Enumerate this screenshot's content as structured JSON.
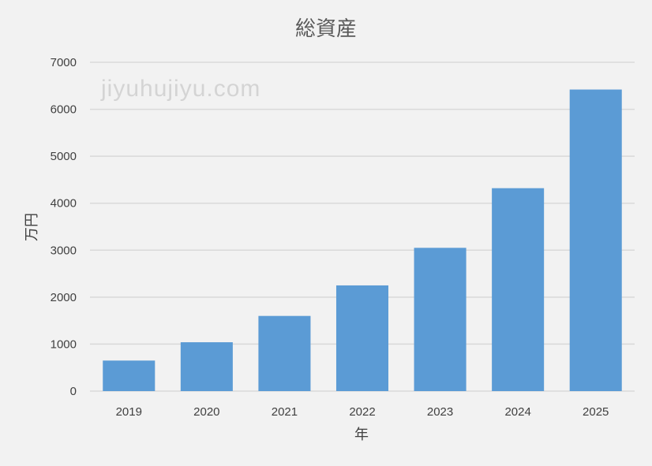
{
  "watermark": "jiyuhujiyu.com",
  "chart_data": {
    "type": "bar",
    "title": "総資産",
    "xlabel": "年",
    "ylabel": "万円",
    "categories": [
      "2019",
      "2020",
      "2021",
      "2022",
      "2023",
      "2024",
      "2025"
    ],
    "values": [
      650,
      1040,
      1600,
      2250,
      3050,
      4320,
      6420
    ],
    "ylim": [
      0,
      7000
    ],
    "yticks": [
      0,
      1000,
      2000,
      3000,
      4000,
      5000,
      6000,
      7000
    ],
    "grid": true,
    "legend": "none",
    "bar_color": "#5b9bd5",
    "grid_color": "#d9d9d9"
  }
}
